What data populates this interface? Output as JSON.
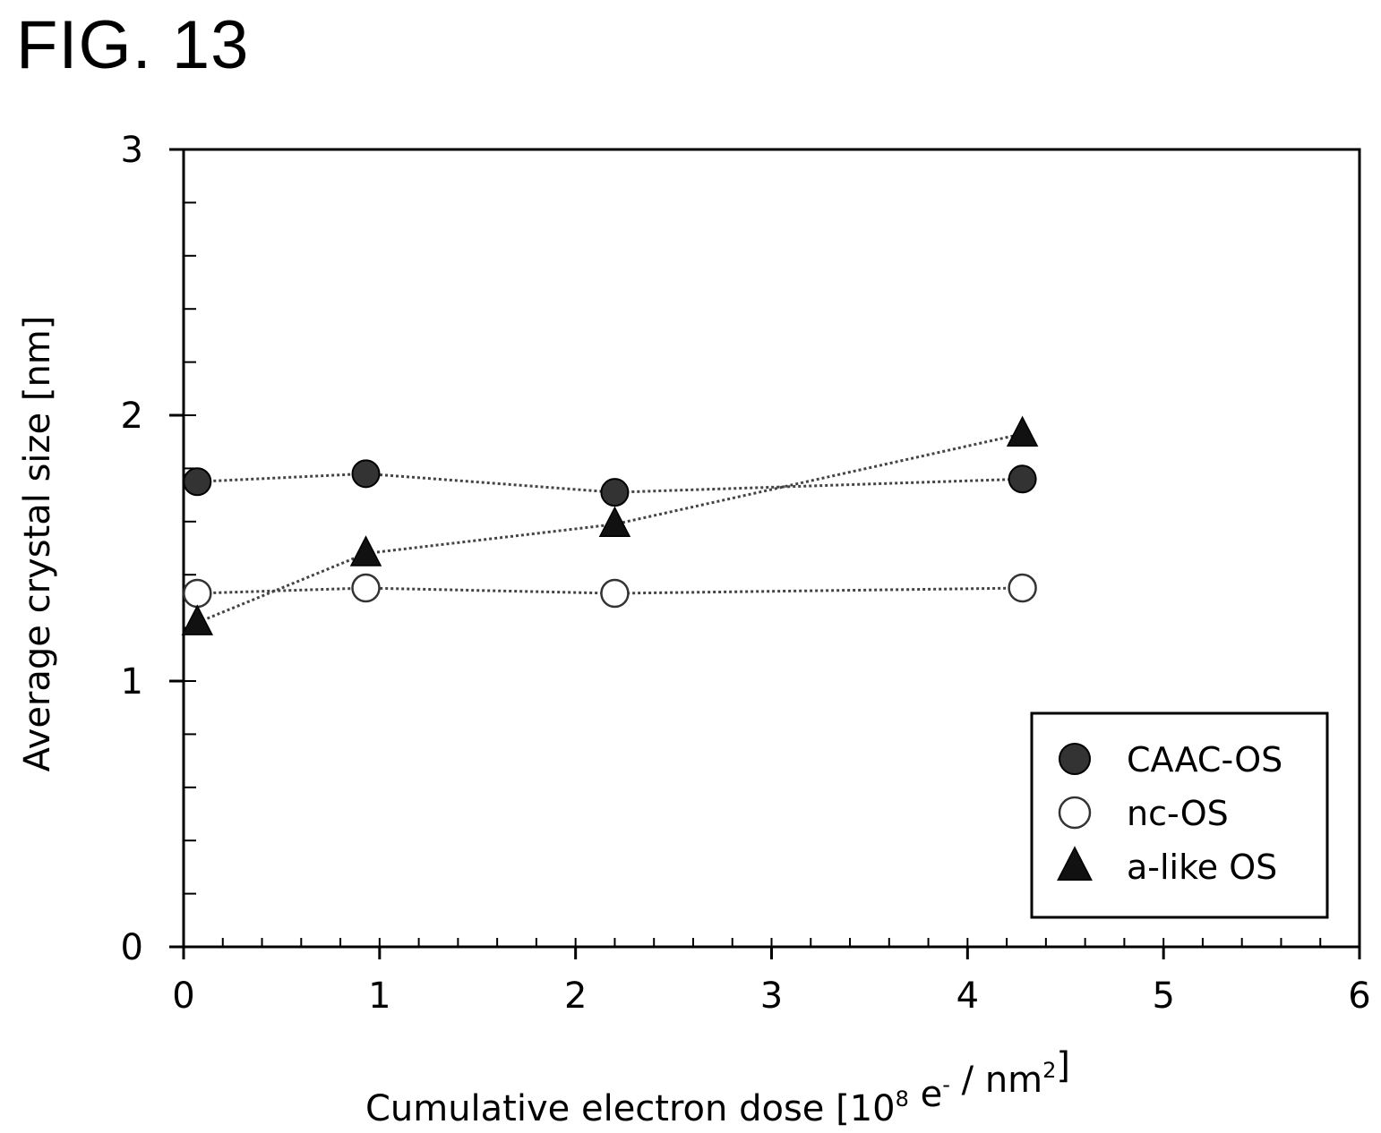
{
  "figure": {
    "label": "FIG. 13"
  },
  "chart_data": {
    "type": "scatter",
    "title": "",
    "xlabel": "Cumulative electron dose [10",
    "xlabel_exponent": "8",
    "xlabel_middle": " e",
    "xlabel_e_sup": "-",
    "xlabel_unit": " / nm",
    "xlabel_unit_sup": "2",
    "xlabel_end": "]",
    "ylabel": "Average crystal size [nm]",
    "xlim": [
      0,
      6
    ],
    "ylim": [
      0,
      3
    ],
    "x_ticks": [
      "0",
      "1",
      "2",
      "3",
      "4",
      "5",
      "6"
    ],
    "y_ticks": [
      "0",
      "1",
      "2",
      "3"
    ],
    "x_minor_step": 0.2,
    "y_minor_step": 0.2,
    "grid": false,
    "legend_position": "bottom-right",
    "line_style": "dotted",
    "series": [
      {
        "name": "CAAC-OS",
        "marker": "filled-circle",
        "color": "#333333",
        "x": [
          0.07,
          0.93,
          2.2,
          4.28
        ],
        "y": [
          1.75,
          1.78,
          1.71,
          1.76
        ]
      },
      {
        "name": "nc-OS",
        "marker": "open-circle",
        "color": "#555555",
        "x": [
          0.07,
          0.93,
          2.2,
          4.28
        ],
        "y": [
          1.33,
          1.35,
          1.33,
          1.35
        ]
      },
      {
        "name": "a-like OS",
        "marker": "filled-triangle",
        "color": "#111111",
        "x": [
          0.07,
          0.93,
          2.2,
          4.28
        ],
        "y": [
          1.22,
          1.48,
          1.59,
          1.93
        ]
      }
    ]
  }
}
